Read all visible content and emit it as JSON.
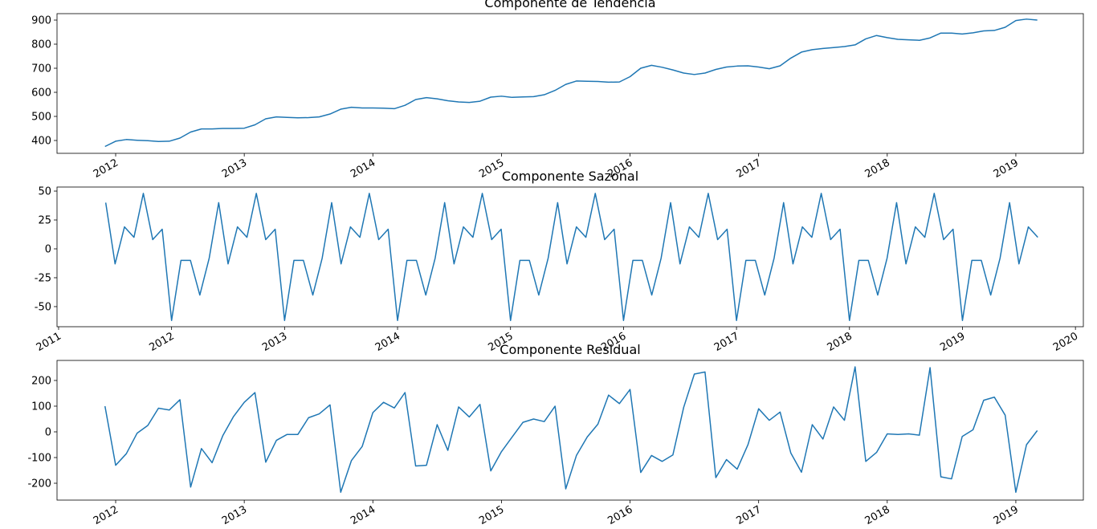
{
  "chart_data": [
    {
      "type": "line",
      "title": "Componente de Tendencia",
      "x": [
        2011.917,
        2012.0,
        2012.083,
        2012.167,
        2012.25,
        2012.333,
        2012.417,
        2012.5,
        2012.583,
        2012.667,
        2012.75,
        2012.833,
        2012.917,
        2013.0,
        2013.083,
        2013.167,
        2013.25,
        2013.333,
        2013.417,
        2013.5,
        2013.583,
        2013.667,
        2013.75,
        2013.833,
        2013.917,
        2014.0,
        2014.083,
        2014.167,
        2014.25,
        2014.333,
        2014.417,
        2014.5,
        2014.583,
        2014.667,
        2014.75,
        2014.833,
        2014.917,
        2015.0,
        2015.083,
        2015.167,
        2015.25,
        2015.333,
        2015.417,
        2015.5,
        2015.583,
        2015.667,
        2015.75,
        2015.833,
        2015.917,
        2016.0,
        2016.083,
        2016.167,
        2016.25,
        2016.333,
        2016.417,
        2016.5,
        2016.583,
        2016.667,
        2016.75,
        2016.833,
        2016.917,
        2017.0,
        2017.083,
        2017.167,
        2017.25,
        2017.333,
        2017.417,
        2017.5,
        2017.583,
        2017.667,
        2017.75,
        2017.833,
        2017.917,
        2018.0,
        2018.083,
        2018.167,
        2018.25,
        2018.333,
        2018.417,
        2018.5,
        2018.583,
        2018.667,
        2018.75,
        2018.833,
        2018.917,
        2019.0,
        2019.083,
        2019.167
      ],
      "series": [
        {
          "color": "#1f77b4",
          "values": [
            375,
            397,
            404,
            401,
            399,
            396,
            397,
            410,
            435,
            448,
            448,
            450,
            450,
            451,
            465,
            490,
            498,
            496,
            494,
            495,
            498,
            510,
            530,
            538,
            535,
            535,
            534,
            532,
            546,
            570,
            578,
            573,
            565,
            560,
            558,
            563,
            580,
            584,
            579,
            581,
            582,
            590,
            608,
            633,
            647,
            646,
            645,
            642,
            643,
            665,
            700,
            712,
            704,
            693,
            680,
            674,
            680,
            695,
            705,
            709,
            710,
            705,
            698,
            710,
            742,
            767,
            777,
            782,
            786,
            790,
            797,
            822,
            836,
            827,
            820,
            818,
            816,
            826,
            846,
            846,
            842,
            847,
            855,
            857,
            870,
            898,
            904,
            900
          ]
        }
      ],
      "xlim": [
        2011.544,
        2019.525
      ],
      "xticks": [
        2012,
        2013,
        2014,
        2015,
        2016,
        2017,
        2018,
        2019
      ],
      "ylim": [
        346.7,
        926.7
      ],
      "yticks": [
        400,
        500,
        600,
        700,
        800,
        900
      ]
    },
    {
      "type": "line",
      "title": "Componente Sazonal",
      "x": [
        2011.417,
        2011.5,
        2011.583,
        2011.667,
        2011.75,
        2011.833,
        2011.917,
        2012.0,
        2012.083,
        2012.167,
        2012.25,
        2012.333,
        2012.417,
        2012.5,
        2012.583,
        2012.667,
        2012.75,
        2012.833,
        2012.917,
        2013.0,
        2013.083,
        2013.167,
        2013.25,
        2013.333,
        2013.417,
        2013.5,
        2013.583,
        2013.667,
        2013.75,
        2013.833,
        2013.917,
        2014.0,
        2014.083,
        2014.167,
        2014.25,
        2014.333,
        2014.417,
        2014.5,
        2014.583,
        2014.667,
        2014.75,
        2014.833,
        2014.917,
        2015.0,
        2015.083,
        2015.167,
        2015.25,
        2015.333,
        2015.417,
        2015.5,
        2015.583,
        2015.667,
        2015.75,
        2015.833,
        2015.917,
        2016.0,
        2016.083,
        2016.167,
        2016.25,
        2016.333,
        2016.417,
        2016.5,
        2016.583,
        2016.667,
        2016.75,
        2016.833,
        2016.917,
        2017.0,
        2017.083,
        2017.167,
        2017.25,
        2017.333,
        2017.417,
        2017.5,
        2017.583,
        2017.667,
        2017.75,
        2017.833,
        2017.917,
        2018.0,
        2018.083,
        2018.167,
        2018.25,
        2018.333,
        2018.417,
        2018.5,
        2018.583,
        2018.667,
        2018.75,
        2018.833,
        2018.917,
        2019.0,
        2019.083,
        2019.167,
        2019.25,
        2019.333,
        2019.417,
        2019.5,
        2019.583,
        2019.667
      ],
      "series": [
        {
          "color": "#1f77b4",
          "values": [
            40,
            -13,
            19,
            10,
            48,
            8,
            17,
            -62,
            -10,
            -10,
            -40,
            -8,
            40,
            -13,
            19,
            10,
            48,
            8,
            17,
            -62,
            -10,
            -10,
            -40,
            -8,
            40,
            -13,
            19,
            10,
            48,
            8,
            17,
            -62,
            -10,
            -10,
            -40,
            -8,
            40,
            -13,
            19,
            10,
            48,
            8,
            17,
            -62,
            -10,
            -10,
            -40,
            -8,
            40,
            -13,
            19,
            10,
            48,
            8,
            17,
            -62,
            -10,
            -10,
            -40,
            -8,
            40,
            -13,
            19,
            10,
            48,
            8,
            17,
            -62,
            -10,
            -10,
            -40,
            -8,
            40,
            -13,
            19,
            10,
            48,
            8,
            17,
            -62,
            -10,
            -10,
            -40,
            -8,
            40,
            -13,
            19,
            10,
            48,
            8,
            17,
            -62,
            -10,
            -10,
            -40,
            -8,
            40,
            -13,
            19,
            10
          ]
        }
      ],
      "xlim": [
        2010.986,
        2020.07
      ],
      "xticks": [
        2011,
        2012,
        2013,
        2014,
        2015,
        2016,
        2017,
        2018,
        2019,
        2020
      ],
      "ylim": [
        -67.4,
        53.5
      ],
      "yticks": [
        -50,
        -25,
        0,
        25,
        50
      ]
    },
    {
      "type": "line",
      "title": "Componente Residual",
      "x": [
        2011.917,
        2012.0,
        2012.083,
        2012.167,
        2012.25,
        2012.333,
        2012.417,
        2012.5,
        2012.583,
        2012.667,
        2012.75,
        2012.833,
        2012.917,
        2013.0,
        2013.083,
        2013.167,
        2013.25,
        2013.333,
        2013.417,
        2013.5,
        2013.583,
        2013.667,
        2013.75,
        2013.833,
        2013.917,
        2014.0,
        2014.083,
        2014.167,
        2014.25,
        2014.333,
        2014.417,
        2014.5,
        2014.583,
        2014.667,
        2014.75,
        2014.833,
        2014.917,
        2015.0,
        2015.083,
        2015.167,
        2015.25,
        2015.333,
        2015.417,
        2015.5,
        2015.583,
        2015.667,
        2015.75,
        2015.833,
        2015.917,
        2016.0,
        2016.083,
        2016.167,
        2016.25,
        2016.333,
        2016.417,
        2016.5,
        2016.583,
        2016.667,
        2016.75,
        2016.833,
        2016.917,
        2017.0,
        2017.083,
        2017.167,
        2017.25,
        2017.333,
        2017.417,
        2017.5,
        2017.583,
        2017.667,
        2017.75,
        2017.833,
        2017.917,
        2018.0,
        2018.083,
        2018.167,
        2018.25,
        2018.333,
        2018.417,
        2018.5,
        2018.583,
        2018.667,
        2018.75,
        2018.833,
        2018.917,
        2019.0,
        2019.083,
        2019.167
      ],
      "series": [
        {
          "color": "#1f77b4",
          "values": [
            100,
            -130,
            -85,
            -5,
            25,
            92,
            85,
            125,
            -215,
            -65,
            -120,
            -15,
            60,
            115,
            153,
            -118,
            -33,
            -10,
            -10,
            55,
            70,
            105,
            -235,
            -112,
            -57,
            75,
            115,
            93,
            153,
            -133,
            -130,
            28,
            -72,
            97,
            58,
            107,
            -152,
            -77,
            -20,
            37,
            50,
            40,
            100,
            -222,
            -92,
            -20,
            30,
            143,
            110,
            165,
            -158,
            -92,
            -115,
            -90,
            95,
            225,
            233,
            -178,
            -108,
            -145,
            -50,
            90,
            45,
            77,
            -82,
            -157,
            28,
            -28,
            97,
            45,
            253,
            -115,
            -80,
            -8,
            -10,
            -8,
            -13,
            250,
            -175,
            -183,
            -18,
            8,
            123,
            135,
            65,
            -235,
            -50,
            5
          ]
        }
      ],
      "xlim": [
        2011.544,
        2019.525
      ],
      "xticks": [
        2012,
        2013,
        2014,
        2015,
        2016,
        2017,
        2018,
        2019
      ],
      "ylim": [
        -265.6,
        278
      ],
      "yticks": [
        -200,
        -100,
        0,
        100,
        200
      ]
    }
  ]
}
